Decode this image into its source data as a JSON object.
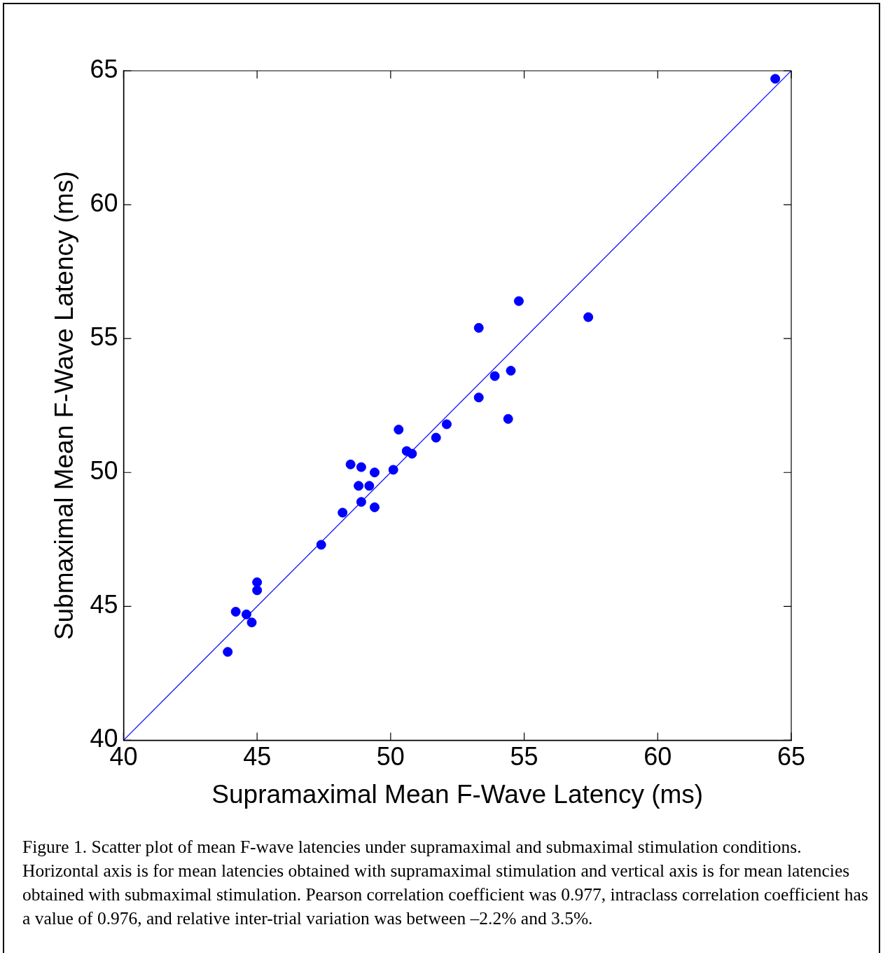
{
  "chart_data": {
    "type": "scatter",
    "xlabel": "Supramaximal Mean F-Wave Latency (ms)",
    "ylabel": "Submaximal Mean F-Wave Latency (ms)",
    "xlim": [
      40,
      65
    ],
    "xticks": [
      40,
      45,
      50,
      55,
      60,
      65
    ],
    "ylim": [
      40,
      65
    ],
    "yticks": [
      40,
      45,
      50,
      55,
      60,
      65
    ],
    "grid": false,
    "legend": false,
    "marker": "circle",
    "series": [
      {
        "color": "#0000ff",
        "x": [
          43.9,
          44.2,
          44.6,
          44.8,
          45.0,
          45.0,
          47.4,
          48.2,
          48.5,
          48.8,
          48.9,
          48.9,
          49.2,
          49.4,
          49.4,
          50.1,
          50.3,
          50.6,
          50.8,
          51.7,
          52.1,
          53.3,
          53.3,
          53.9,
          54.4,
          54.5,
          54.8,
          57.4,
          64.4
        ],
        "values": [
          43.3,
          44.8,
          44.7,
          44.4,
          45.9,
          45.6,
          47.3,
          48.5,
          50.3,
          49.5,
          50.2,
          48.9,
          49.5,
          48.7,
          50.0,
          50.1,
          51.6,
          50.8,
          50.7,
          51.3,
          51.8,
          52.8,
          55.4,
          53.6,
          52.0,
          53.8,
          56.4,
          55.8,
          64.7
        ]
      },
      {
        "type": "line",
        "color": "#0000ff",
        "x": [
          40,
          65
        ],
        "values": [
          40,
          65
        ],
        "marker": "none",
        "line_style": "solid"
      }
    ],
    "annotations": [
      "Figure 1.  Scatter plot of mean F-wave latencies under supramaximal and submaximal stimulation conditions.  Horizontal axis is for mean latencies obtained with supramaximal stimulation and vertical axis is for mean latencies obtained with submaximal stimulation. Pearson correlation coefficient was 0.977, intraclass correlation coefficient has a value of 0.976, and relative inter-trial variation was between –2.2% and 3.5%."
    ]
  }
}
